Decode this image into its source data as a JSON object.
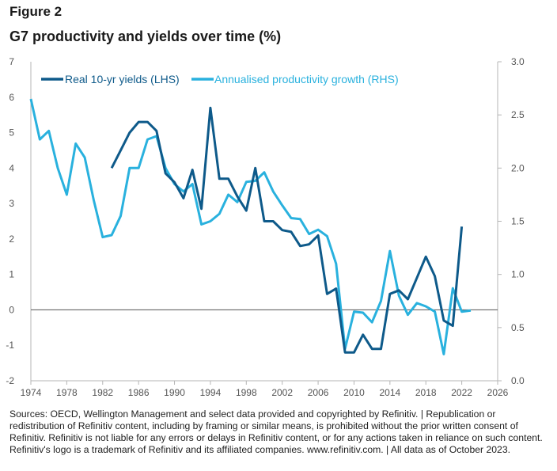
{
  "figure_label": "Figure 2",
  "title": "G7 productivity and yields over time (%)",
  "source": "Sources: OECD, Wellington Management and select data provided and copyrighted by Refinitiv.  |  Republication or redistribution of Refinitiv content, including by framing or similar means, is prohibited without the prior written consent of Refinitiv. Refinitiv is not liable for any errors or delays in Refinitiv content, or for any actions taken in reliance on such content. Refinitiv's logo is a trademark of Refinitiv and its affiliated companies. www.refinitiv.com.  |  All data as of October 2023.",
  "chart_data": {
    "type": "line",
    "title": "G7 productivity and yields over time (%)",
    "xlim": [
      1974,
      2026
    ],
    "x_ticks": [
      "1974",
      "1978",
      "1982",
      "1986",
      "1990",
      "1994",
      "1998",
      "2002",
      "2006",
      "2010",
      "2014",
      "2018",
      "2022",
      "2026"
    ],
    "left_axis": {
      "ylim": [
        -2,
        7
      ],
      "ticks": [
        "-2",
        "-1",
        "0",
        "1",
        "2",
        "3",
        "4",
        "5",
        "6",
        "7"
      ]
    },
    "right_axis": {
      "ylim": [
        0.0,
        3.0
      ],
      "ticks": [
        "0.0",
        "0.5",
        "1.0",
        "1.5",
        "2.0",
        "2.5",
        "3.0"
      ]
    },
    "zero_line": true,
    "legend_position": "top-left",
    "colors": {
      "yields": "#0e5a8a",
      "productivity": "#29b1de",
      "zero_line": "#666666",
      "axis": "#b5b5b5"
    },
    "series": [
      {
        "name": "Real 10-yr yields (LHS)",
        "axis": "left",
        "x": [
          1983,
          1984,
          1985,
          1986,
          1987,
          1988,
          1989,
          1990,
          1991,
          1992,
          1993,
          1994,
          1995,
          1996,
          1997,
          1998,
          1999,
          2000,
          2001,
          2002,
          2003,
          2004,
          2005,
          2006,
          2007,
          2008,
          2009,
          2010,
          2011,
          2012,
          2013,
          2014,
          2015,
          2016,
          2017,
          2018,
          2019,
          2020,
          2021,
          2022
        ],
        "values": [
          4.0,
          4.5,
          5.0,
          5.3,
          5.3,
          5.05,
          3.85,
          3.6,
          3.15,
          3.95,
          2.85,
          5.7,
          3.7,
          3.7,
          3.2,
          2.8,
          4.0,
          2.5,
          2.5,
          2.25,
          2.2,
          1.8,
          1.85,
          2.1,
          0.45,
          0.6,
          -1.2,
          -1.2,
          -0.7,
          -1.1,
          -1.1,
          0.45,
          0.55,
          0.3,
          0.9,
          1.5,
          0.95,
          -0.3,
          -0.45,
          2.35
        ]
      },
      {
        "name": "Annualised productivity growth (RHS)",
        "axis": "right",
        "x": [
          1974,
          1975,
          1976,
          1977,
          1978,
          1979,
          1980,
          1981,
          1982,
          1983,
          1984,
          1985,
          1986,
          1987,
          1988,
          1989,
          1990,
          1991,
          1992,
          1993,
          1994,
          1995,
          1996,
          1997,
          1998,
          1999,
          2000,
          2001,
          2002,
          2003,
          2004,
          2005,
          2006,
          2007,
          2008,
          2009,
          2010,
          2011,
          2012,
          2013,
          2014,
          2015,
          2016,
          2017,
          2018,
          2019,
          2020,
          2021,
          2022,
          2023
        ],
        "values": [
          2.65,
          2.27,
          2.35,
          2.0,
          1.75,
          2.23,
          2.1,
          1.7,
          1.35,
          1.37,
          1.55,
          2.0,
          2.0,
          2.27,
          2.3,
          2.0,
          1.85,
          1.78,
          1.85,
          1.47,
          1.5,
          1.57,
          1.75,
          1.68,
          1.87,
          1.88,
          1.96,
          1.78,
          1.65,
          1.53,
          1.52,
          1.38,
          1.42,
          1.36,
          1.1,
          0.3,
          0.65,
          0.64,
          0.55,
          0.75,
          1.22,
          0.8,
          0.62,
          0.73,
          0.7,
          0.65,
          0.25,
          0.87,
          0.65,
          0.66
        ]
      }
    ]
  }
}
